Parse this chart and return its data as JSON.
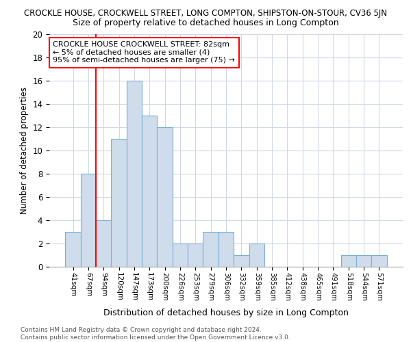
{
  "title": "CROCKLE HOUSE, CROCKWELL STREET, LONG COMPTON, SHIPSTON-ON-STOUR, CV36 5JN",
  "subtitle": "Size of property relative to detached houses in Long Compton",
  "xlabel": "Distribution of detached houses by size in Long Compton",
  "ylabel": "Number of detached properties",
  "categories": [
    "41sqm",
    "67sqm",
    "94sqm",
    "120sqm",
    "147sqm",
    "173sqm",
    "200sqm",
    "226sqm",
    "253sqm",
    "279sqm",
    "306sqm",
    "332sqm",
    "359sqm",
    "385sqm",
    "412sqm",
    "438sqm",
    "465sqm",
    "491sqm",
    "518sqm",
    "544sqm",
    "571sqm"
  ],
  "values": [
    3,
    8,
    4,
    11,
    16,
    13,
    12,
    2,
    2,
    3,
    3,
    1,
    2,
    0,
    0,
    0,
    0,
    0,
    1,
    1,
    1
  ],
  "bar_color": "#cfdcec",
  "bar_edge_color": "#7aafd4",
  "bar_width": 1.0,
  "vline_x": 1.5,
  "vline_color": "red",
  "annotation_text": "CROCKLE HOUSE CROCKWELL STREET: 82sqm\n← 5% of detached houses are smaller (4)\n95% of semi-detached houses are larger (75) →",
  "annotation_box_color": "white",
  "annotation_box_edge_color": "red",
  "ylim": [
    0,
    20
  ],
  "yticks": [
    0,
    2,
    4,
    6,
    8,
    10,
    12,
    14,
    16,
    18,
    20
  ],
  "footnote": "Contains HM Land Registry data © Crown copyright and database right 2024.\nContains public sector information licensed under the Open Government Licence v3.0.",
  "background_color": "#ffffff",
  "grid_color": "#d0d8e8"
}
